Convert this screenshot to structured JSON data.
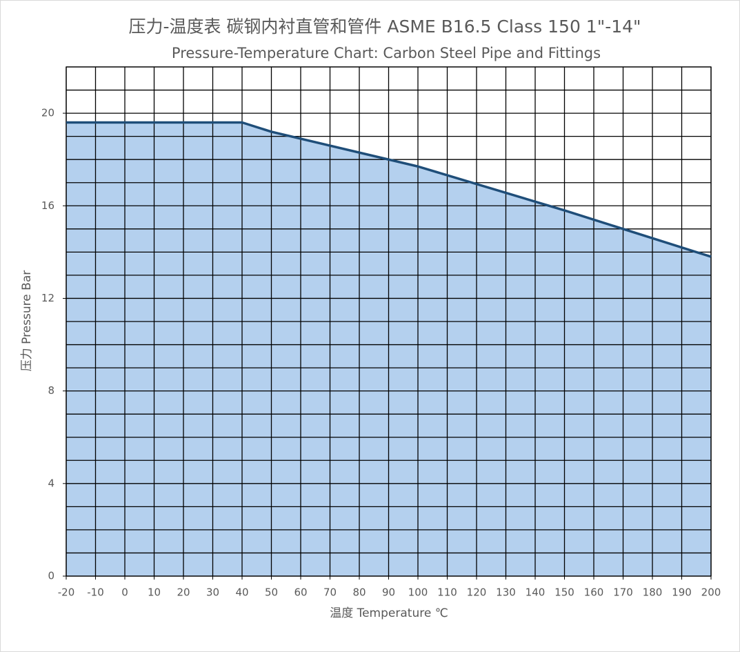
{
  "chart_data": {
    "type": "area",
    "title": "压力-温度表 碳钢内衬直管和管件 ASME B16.5 Class 150 1\"-14\"",
    "subtitle": "Pressure-Temperature  Chart: Carbon Steel Pipe and Fittings",
    "x_label": "温度 Temperature ℃",
    "y_label": "压力 Pressure Bar",
    "x": [
      -20,
      40,
      50,
      100,
      150,
      200
    ],
    "values": [
      19.6,
      19.6,
      19.2,
      17.7,
      15.8,
      13.8
    ],
    "color": "#b4d0ee",
    "line_color": "#1f4e79",
    "xlim": [
      -20,
      200
    ],
    "xticks": [
      -20,
      -10,
      0,
      10,
      20,
      30,
      40,
      50,
      60,
      70,
      80,
      90,
      100,
      110,
      120,
      130,
      140,
      150,
      160,
      170,
      180,
      190,
      200
    ],
    "ylim": [
      0,
      22
    ],
    "yticks": [
      0,
      4,
      8,
      12,
      16,
      20
    ],
    "minor_yticks": [
      1,
      2,
      3,
      5,
      6,
      7,
      9,
      10,
      11,
      13,
      14,
      15,
      17,
      18,
      19,
      21,
      22
    ],
    "grid": true
  }
}
